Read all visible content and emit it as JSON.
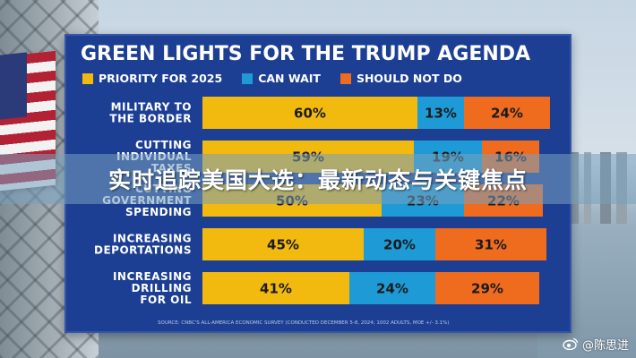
{
  "headline": "实时追踪美国大选：最新动态与关键焦点",
  "watermark": {
    "handle": "@陈思进",
    "icon": "weibo-icon"
  },
  "colors": {
    "panel": "#1c3f94",
    "priority": "#f2b90f",
    "can_wait": "#1e9bd7",
    "should_not_do": "#ef6c1f"
  },
  "chart_data": {
    "type": "bar",
    "orientation": "horizontal",
    "stacked": true,
    "title": "GREEN LIGHTS FOR THE TRUMP AGENDA",
    "legend_position": "top",
    "categories": [
      [
        "MILITARY TO",
        "THE BORDER"
      ],
      [
        "CUTTING",
        "INDIVIDUAL",
        "TAXES"
      ],
      [
        "CUTTING",
        "GOVERNMENT",
        "SPENDING"
      ],
      [
        "INCREASING",
        "DEPORTATIONS"
      ],
      [
        "INCREASING",
        "DRILLING",
        "FOR OIL"
      ]
    ],
    "series": [
      {
        "name": "PRIORITY FOR 2025",
        "color": "#f2b90f",
        "values": [
          60,
          59,
          50,
          45,
          41
        ]
      },
      {
        "name": "CAN WAIT",
        "color": "#1e9bd7",
        "values": [
          13,
          19,
          23,
          20,
          24
        ]
      },
      {
        "name": "SHOULD NOT DO",
        "color": "#ef6c1f",
        "values": [
          24,
          16,
          22,
          31,
          29
        ]
      }
    ],
    "value_suffix": "%",
    "xlim": [
      0,
      100
    ],
    "grid": false,
    "source": "SOURCE: CNBC'S ALL-AMERICA ECONOMIC SURVEY (CONDUCTED DECEMBER 5-8, 2024; 1002 ADULTS, MOE +/- 3.1%)"
  }
}
